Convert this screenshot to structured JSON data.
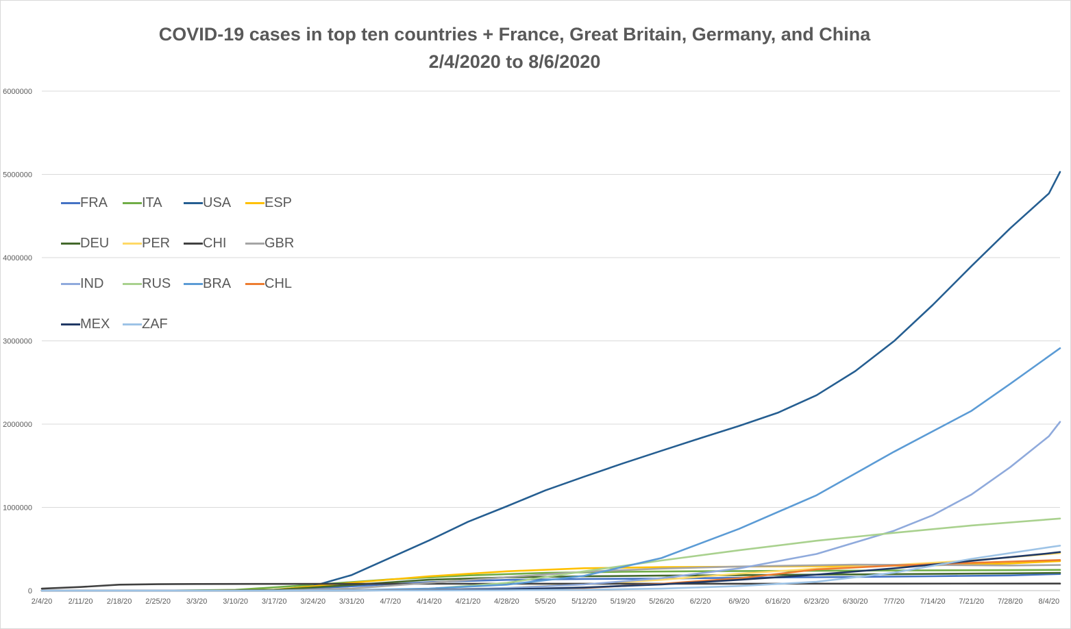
{
  "chart_data": {
    "type": "line",
    "title": "COVID-19 cases in top ten countries + France, Great Britain, Germany, and China",
    "subtitle": "2/4/2020 to 8/6/2020",
    "xlabel": "",
    "ylabel": "",
    "x_tick_labels": [
      "2/4/20",
      "2/11/20",
      "2/18/20",
      "2/25/20",
      "3/3/20",
      "3/10/20",
      "3/17/20",
      "3/24/20",
      "3/31/20",
      "4/7/20",
      "4/14/20",
      "4/21/20",
      "4/28/20",
      "5/5/20",
      "5/12/20",
      "5/19/20",
      "5/26/20",
      "6/2/20",
      "6/9/20",
      "6/16/20",
      "6/23/20",
      "6/30/20",
      "7/7/20",
      "7/14/20",
      "7/21/20",
      "7/28/20",
      "8/4/20"
    ],
    "y_tick_labels": [
      "0",
      "1000000",
      "2000000",
      "3000000",
      "4000000",
      "5000000",
      "6000000"
    ],
    "ylim": [
      0,
      6000000
    ],
    "grid": "horizontal",
    "legend_position": "top-left",
    "series": [
      {
        "name": "FRA",
        "color": "#4472C4",
        "points": [
          [
            "2/4/20",
            0
          ],
          [
            "3/3/20",
            200
          ],
          [
            "3/17/20",
            9000
          ],
          [
            "3/31/20",
            52000
          ],
          [
            "4/14/20",
            103000
          ],
          [
            "4/28/20",
            129000
          ],
          [
            "5/12/20",
            140000
          ],
          [
            "5/26/20",
            145000
          ],
          [
            "6/9/20",
            155000
          ],
          [
            "6/30/20",
            165000
          ],
          [
            "7/14/20",
            173000
          ],
          [
            "7/28/20",
            183000
          ],
          [
            "8/6/20",
            200000
          ]
        ]
      },
      {
        "name": "ITA",
        "color": "#70AD47",
        "points": [
          [
            "2/4/20",
            0
          ],
          [
            "2/25/20",
            300
          ],
          [
            "3/10/20",
            10000
          ],
          [
            "3/24/20",
            70000
          ],
          [
            "4/7/20",
            135000
          ],
          [
            "4/21/20",
            183000
          ],
          [
            "5/5/20",
            213000
          ],
          [
            "5/19/20",
            226000
          ],
          [
            "6/2/20",
            233000
          ],
          [
            "6/30/20",
            240000
          ],
          [
            "7/28/20",
            246000
          ],
          [
            "8/6/20",
            249000
          ]
        ]
      },
      {
        "name": "USA",
        "color": "#255E91",
        "points": [
          [
            "2/4/20",
            11
          ],
          [
            "3/3/20",
            100
          ],
          [
            "3/17/20",
            6400
          ],
          [
            "3/24/20",
            54000
          ],
          [
            "3/31/20",
            188000
          ],
          [
            "4/7/20",
            396000
          ],
          [
            "4/14/20",
            603000
          ],
          [
            "4/21/20",
            826000
          ],
          [
            "4/28/20",
            1012000
          ],
          [
            "5/5/20",
            1204000
          ],
          [
            "5/12/20",
            1369000
          ],
          [
            "5/19/20",
            1528000
          ],
          [
            "5/26/20",
            1681000
          ],
          [
            "6/2/20",
            1831000
          ],
          [
            "6/9/20",
            1979000
          ],
          [
            "6/16/20",
            2137000
          ],
          [
            "6/23/20",
            2347000
          ],
          [
            "6/30/20",
            2637000
          ],
          [
            "7/7/20",
            2997000
          ],
          [
            "7/14/20",
            3432000
          ],
          [
            "7/21/20",
            3899000
          ],
          [
            "7/28/20",
            4352000
          ],
          [
            "8/4/20",
            4771000
          ],
          [
            "8/6/20",
            5030000
          ]
        ]
      },
      {
        "name": "ESP",
        "color": "#FFC000",
        "points": [
          [
            "2/4/20",
            0
          ],
          [
            "3/3/20",
            150
          ],
          [
            "3/17/20",
            11000
          ],
          [
            "3/31/20",
            95000
          ],
          [
            "4/14/20",
            172000
          ],
          [
            "4/28/20",
            232000
          ],
          [
            "5/12/20",
            269000
          ],
          [
            "5/26/20",
            282000
          ],
          [
            "6/9/20",
            288000
          ],
          [
            "6/30/20",
            296000
          ],
          [
            "7/14/20",
            303000
          ],
          [
            "7/28/20",
            327000
          ],
          [
            "8/6/20",
            355000
          ]
        ]
      },
      {
        "name": "DEU",
        "color": "#43682B",
        "points": [
          [
            "2/4/20",
            12
          ],
          [
            "3/3/20",
            200
          ],
          [
            "3/17/20",
            9000
          ],
          [
            "3/31/20",
            68000
          ],
          [
            "4/14/20",
            131000
          ],
          [
            "4/28/20",
            159000
          ],
          [
            "5/12/20",
            172000
          ],
          [
            "5/26/20",
            180000
          ],
          [
            "6/9/20",
            186000
          ],
          [
            "6/30/20",
            195000
          ],
          [
            "7/28/20",
            207000
          ],
          [
            "8/6/20",
            214000
          ]
        ]
      },
      {
        "name": "PER",
        "color": "#FFD966",
        "points": [
          [
            "2/4/20",
            0
          ],
          [
            "3/10/20",
            10
          ],
          [
            "3/31/20",
            1000
          ],
          [
            "4/14/20",
            10000
          ],
          [
            "4/28/20",
            33000
          ],
          [
            "5/12/20",
            76000
          ],
          [
            "5/26/20",
            130000
          ],
          [
            "6/9/20",
            203000
          ],
          [
            "6/23/20",
            265000
          ],
          [
            "7/7/20",
            309000
          ],
          [
            "7/21/20",
            362000
          ],
          [
            "8/6/20",
            450000
          ]
        ]
      },
      {
        "name": "CHI",
        "color": "#404040",
        "points": [
          [
            "2/4/20",
            24000
          ],
          [
            "2/11/20",
            44000
          ],
          [
            "2/18/20",
            72000
          ],
          [
            "2/25/20",
            77000
          ],
          [
            "3/3/20",
            80000
          ],
          [
            "3/17/20",
            81000
          ],
          [
            "4/14/20",
            82000
          ],
          [
            "5/12/20",
            83000
          ],
          [
            "6/9/20",
            83500
          ],
          [
            "7/7/20",
            84000
          ],
          [
            "8/6/20",
            84500
          ]
        ]
      },
      {
        "name": "GBR",
        "color": "#A5A5A5",
        "points": [
          [
            "2/4/20",
            2
          ],
          [
            "3/3/20",
            50
          ],
          [
            "3/17/20",
            2000
          ],
          [
            "3/31/20",
            25000
          ],
          [
            "4/14/20",
            94000
          ],
          [
            "4/28/20",
            161000
          ],
          [
            "5/12/20",
            227000
          ],
          [
            "5/26/20",
            265000
          ],
          [
            "6/9/20",
            290000
          ],
          [
            "6/30/20",
            313000
          ],
          [
            "7/28/20",
            302000
          ],
          [
            "8/6/20",
            308000
          ]
        ]
      },
      {
        "name": "IND",
        "color": "#8FAADC",
        "points": [
          [
            "2/4/20",
            3
          ],
          [
            "3/17/20",
            140
          ],
          [
            "3/31/20",
            1400
          ],
          [
            "4/14/20",
            11000
          ],
          [
            "4/28/20",
            31000
          ],
          [
            "5/12/20",
            74000
          ],
          [
            "5/26/20",
            150000
          ],
          [
            "6/9/20",
            267000
          ],
          [
            "6/23/20",
            440000
          ],
          [
            "7/7/20",
            719000
          ],
          [
            "7/14/20",
            906000
          ],
          [
            "7/21/20",
            1155000
          ],
          [
            "7/28/20",
            1483000
          ],
          [
            "8/4/20",
            1855000
          ],
          [
            "8/6/20",
            2027000
          ]
        ]
      },
      {
        "name": "RUS",
        "color": "#A9D18E",
        "points": [
          [
            "2/4/20",
            2
          ],
          [
            "3/17/20",
            100
          ],
          [
            "3/31/20",
            2300
          ],
          [
            "4/14/20",
            21000
          ],
          [
            "4/28/20",
            93000
          ],
          [
            "5/12/20",
            232000
          ],
          [
            "5/26/20",
            362000
          ],
          [
            "6/9/20",
            485000
          ],
          [
            "6/23/20",
            599000
          ],
          [
            "7/7/20",
            694000
          ],
          [
            "7/21/20",
            783000
          ],
          [
            "8/6/20",
            866000
          ]
        ]
      },
      {
        "name": "BRA",
        "color": "#5B9BD5",
        "points": [
          [
            "2/4/20",
            0
          ],
          [
            "3/3/20",
            2
          ],
          [
            "3/17/20",
            290
          ],
          [
            "3/31/20",
            5700
          ],
          [
            "4/14/20",
            25000
          ],
          [
            "4/28/20",
            72000
          ],
          [
            "5/12/20",
            178000
          ],
          [
            "5/26/20",
            392000
          ],
          [
            "6/9/20",
            742000
          ],
          [
            "6/23/20",
            1146000
          ],
          [
            "7/7/20",
            1668000
          ],
          [
            "7/21/20",
            2160000
          ],
          [
            "7/28/20",
            2484000
          ],
          [
            "8/6/20",
            2912000
          ]
        ]
      },
      {
        "name": "CHL",
        "color": "#ED7D31",
        "points": [
          [
            "2/4/20",
            0
          ],
          [
            "3/10/20",
            13
          ],
          [
            "3/31/20",
            2700
          ],
          [
            "4/14/20",
            8000
          ],
          [
            "4/28/20",
            14000
          ],
          [
            "5/12/20",
            31000
          ],
          [
            "5/26/20",
            82000
          ],
          [
            "6/9/20",
            148000
          ],
          [
            "6/23/20",
            254000
          ],
          [
            "7/7/20",
            301000
          ],
          [
            "7/21/20",
            334000
          ],
          [
            "8/6/20",
            368000
          ]
        ]
      },
      {
        "name": "MEX",
        "color": "#203864",
        "points": [
          [
            "2/4/20",
            0
          ],
          [
            "3/10/20",
            7
          ],
          [
            "3/31/20",
            1200
          ],
          [
            "4/14/20",
            5400
          ],
          [
            "4/28/20",
            16000
          ],
          [
            "5/12/20",
            38000
          ],
          [
            "5/26/20",
            75000
          ],
          [
            "6/9/20",
            130000
          ],
          [
            "6/23/20",
            192000
          ],
          [
            "7/7/20",
            268000
          ],
          [
            "7/21/20",
            357000
          ],
          [
            "8/4/20",
            448000
          ],
          [
            "8/6/20",
            463000
          ]
        ]
      },
      {
        "name": "ZAF",
        "color": "#9DC3E6",
        "points": [
          [
            "2/4/20",
            0
          ],
          [
            "3/10/20",
            7
          ],
          [
            "3/31/20",
            1350
          ],
          [
            "4/14/20",
            2400
          ],
          [
            "4/28/20",
            5000
          ],
          [
            "5/12/20",
            11000
          ],
          [
            "5/26/20",
            24000
          ],
          [
            "6/9/20",
            55000
          ],
          [
            "6/23/20",
            106000
          ],
          [
            "7/7/20",
            216000
          ],
          [
            "7/21/20",
            382000
          ],
          [
            "8/4/20",
            521000
          ],
          [
            "8/6/20",
            540000
          ]
        ]
      }
    ]
  }
}
